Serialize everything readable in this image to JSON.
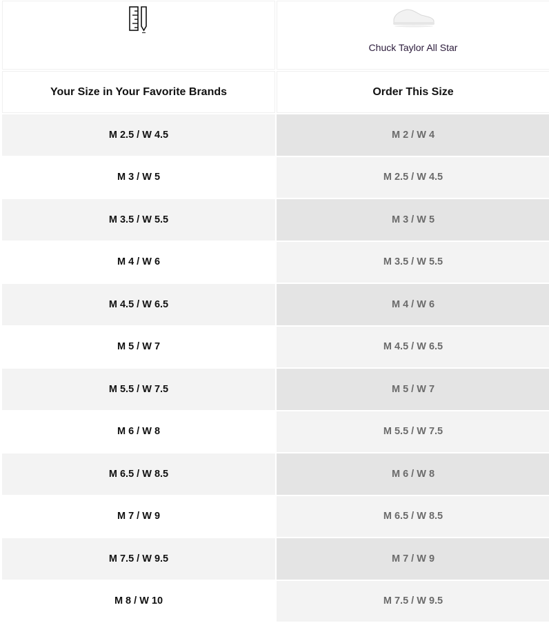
{
  "header": {
    "icon": "ruler-pencil-icon",
    "product_image": "white-low-top-sneaker",
    "product_name": "Chuck Taylor All Star",
    "col_left": "Your Size in Your Favorite Brands",
    "col_right": "Order This Size"
  },
  "rows": [
    {
      "left": "M 2.5 / W 4.5",
      "right": "M 2 / W 4"
    },
    {
      "left": "M 3 / W 5",
      "right": "M 2.5 / W 4.5"
    },
    {
      "left": "M 3.5 / W 5.5",
      "right": "M 3 / W 5"
    },
    {
      "left": "M 4 / W 6",
      "right": "M 3.5 / W 5.5"
    },
    {
      "left": "M 4.5 / W 6.5",
      "right": "M 4 / W 6"
    },
    {
      "left": "M 5 / W 7",
      "right": "M 4.5 / W 6.5"
    },
    {
      "left": "M 5.5 / W 7.5",
      "right": "M 5 / W 7"
    },
    {
      "left": "M 6 / W 8",
      "right": "M 5.5 / W 7.5"
    },
    {
      "left": "M 6.5 / W 8.5",
      "right": "M 6 / W 8"
    },
    {
      "left": "M 7 / W 9",
      "right": "M 6.5 / W 8.5"
    },
    {
      "left": "M 7.5 / W 9.5",
      "right": "M 7 / W 9"
    },
    {
      "left": "M 8 / W 10",
      "right": "M 7.5 / W 9.5"
    }
  ]
}
